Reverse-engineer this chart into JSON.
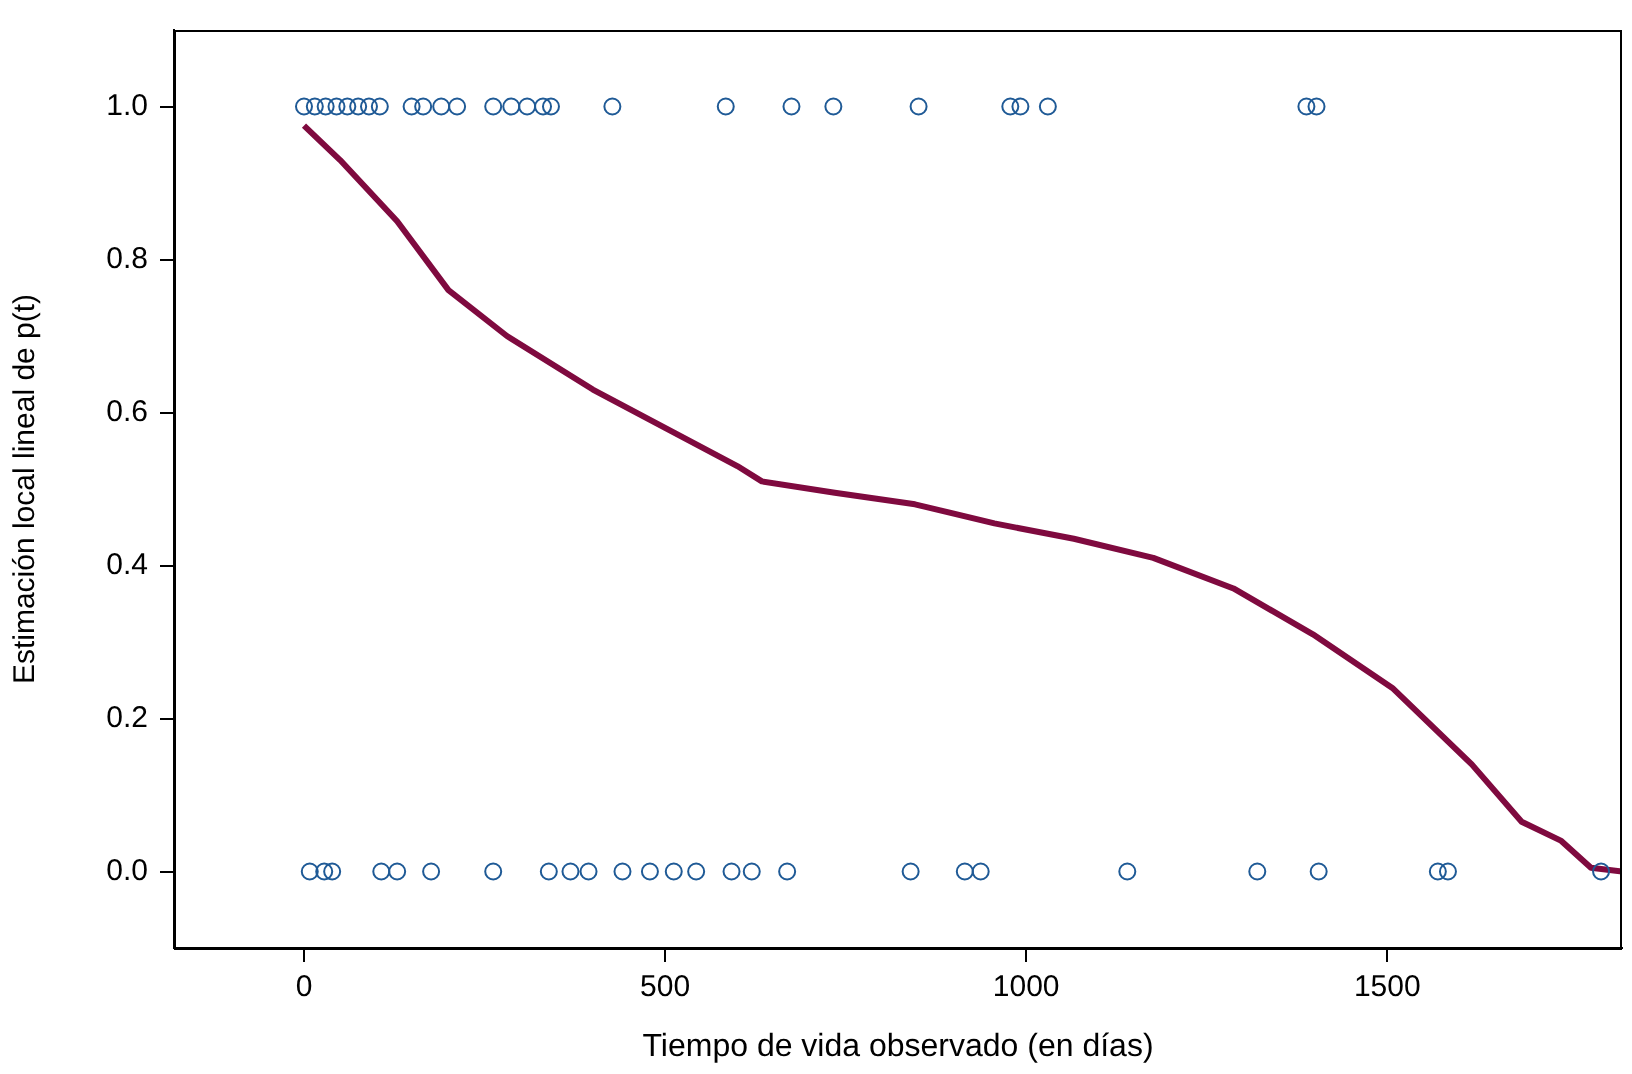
{
  "chart_data": {
    "type": "scatter",
    "xlabel": "Tiempo de vida observado (en días)",
    "ylabel": "Estimación local lineal de p(t)",
    "xlim": [
      -180,
      1825
    ],
    "ylim": [
      -0.1,
      1.1
    ],
    "xticks": [
      0,
      500,
      1000,
      1500
    ],
    "yticks": [
      {
        "value": 0,
        "label": "0.0"
      },
      {
        "value": 0.2,
        "label": "0.2"
      },
      {
        "value": 0.4,
        "label": "0.4"
      },
      {
        "value": 0.6,
        "label": "0.6"
      },
      {
        "value": 0.8,
        "label": "0.8"
      },
      {
        "value": 1,
        "label": "1.0"
      }
    ],
    "grid": false,
    "legend": false,
    "series": [
      {
        "type": "scatter",
        "color": "#1f5a96",
        "marker": "circle",
        "x": [
          0,
          15,
          30,
          45,
          60,
          75,
          90,
          105,
          149,
          165,
          190,
          212,
          262,
          287,
          309,
          331,
          342,
          427,
          584,
          675,
          733,
          851,
          978,
          992,
          1030,
          1388,
          1402
        ],
        "values": [
          1,
          1,
          1,
          1,
          1,
          1,
          1,
          1,
          1,
          1,
          1,
          1,
          1,
          1,
          1,
          1,
          1,
          1,
          1,
          1,
          1,
          1,
          1,
          1,
          1,
          1,
          1
        ]
      },
      {
        "type": "scatter",
        "color": "#1f5a96",
        "marker": "circle",
        "x": [
          8,
          28,
          39,
          107,
          129,
          176,
          262,
          339,
          369,
          394,
          441,
          479,
          512,
          543,
          592,
          620,
          669,
          840,
          915,
          937,
          1140,
          1320,
          1405,
          1570,
          1584,
          1796
        ],
        "values": [
          0,
          0,
          0,
          0,
          0,
          0,
          0,
          0,
          0,
          0,
          0,
          0,
          0,
          0,
          0,
          0,
          0,
          0,
          0,
          0,
          0,
          0,
          0,
          0,
          0,
          0
        ]
      },
      {
        "type": "line",
        "color": "#7f0a3f",
        "marker": "none",
        "line_style": "solid",
        "x": [
          0,
          50,
          129,
          200,
          281,
          400,
          500,
          600,
          634,
          735,
          846,
          956,
          1066,
          1176,
          1287,
          1397,
          1507,
          1617,
          1686,
          1741,
          1782,
          1825
        ],
        "values": [
          0.975,
          0.93,
          0.85,
          0.76,
          0.7,
          0.63,
          0.58,
          0.53,
          0.51,
          0.495,
          0.48,
          0.455,
          0.435,
          0.41,
          0.37,
          0.31,
          0.24,
          0.14,
          0.065,
          0.04,
          0.005,
          0
        ]
      }
    ]
  }
}
